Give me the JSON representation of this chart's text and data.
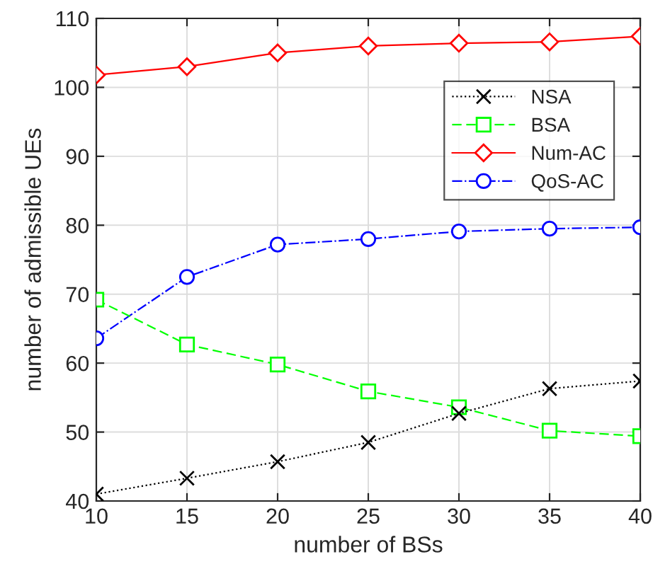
{
  "chart_data": {
    "type": "line",
    "xlabel": "number of BSs",
    "ylabel": "number of admissible UEs",
    "x": [
      10,
      15,
      20,
      25,
      30,
      35,
      40
    ],
    "series": [
      {
        "name": "NSA",
        "color": "#000000",
        "marker": "cross",
        "line_style": "dotted",
        "values": [
          41,
          43.3,
          45.7,
          48.5,
          52.7,
          56.3,
          57.4
        ]
      },
      {
        "name": "BSA",
        "color": "#00ff00",
        "marker": "square",
        "line_style": "dashed",
        "values": [
          69.2,
          62.7,
          59.8,
          55.9,
          53.6,
          50.2,
          49.4
        ]
      },
      {
        "name": "Num-AC",
        "color": "#ff0000",
        "marker": "diamond",
        "line_style": "solid",
        "values": [
          101.8,
          103,
          105,
          106,
          106.4,
          106.6,
          107.4
        ]
      },
      {
        "name": "QoS-AC",
        "color": "#0000ff",
        "marker": "circle",
        "line_style": "dashdot",
        "values": [
          63.6,
          72.5,
          77.2,
          78,
          79.1,
          79.5,
          79.7
        ]
      }
    ],
    "xlim": [
      10,
      40
    ],
    "xticks": [
      10,
      15,
      20,
      25,
      30,
      35,
      40
    ],
    "ylim": [
      40,
      110
    ],
    "yticks": [
      40,
      50,
      60,
      70,
      80,
      90,
      100,
      110
    ],
    "grid": true,
    "legend": "top right"
  }
}
